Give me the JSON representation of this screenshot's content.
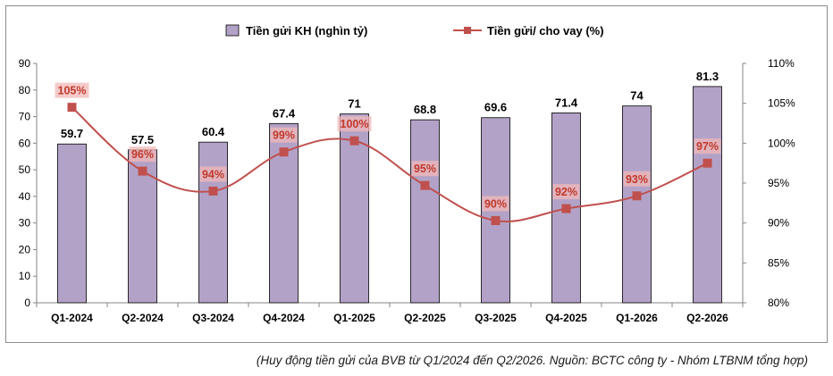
{
  "chart_data": {
    "type": "bar",
    "categories": [
      "Q1-2024",
      "Q2-2024",
      "Q3-2024",
      "Q4-2024",
      "Q1-2025",
      "Q2-2025",
      "Q3-2025",
      "Q4-2025",
      "Q1-2026",
      "Q2-2026"
    ],
    "series": [
      {
        "name": "Tiền gửi KH (nghìn tỷ)",
        "type": "bar",
        "axis": "left",
        "values": [
          59.7,
          57.5,
          60.4,
          67.4,
          71,
          68.8,
          69.6,
          71.4,
          74,
          81.3
        ],
        "labels": [
          "59.7",
          "57.5",
          "60.4",
          "67.4",
          "71",
          "68.8",
          "69.6",
          "71.4",
          "74",
          "81.3"
        ],
        "color": "#b3a2c7",
        "stroke": "#000000"
      },
      {
        "name": "Tiền gửi/ cho vay (%)",
        "type": "line",
        "axis": "right",
        "values": [
          104.5,
          96.5,
          94.0,
          98.9,
          100.3,
          94.7,
          90.3,
          91.8,
          93.4,
          97.5
        ],
        "labels": [
          "105%",
          "96%",
          "94%",
          "99%",
          "100%",
          "95%",
          "90%",
          "92%",
          "93%",
          "97%"
        ],
        "color": "#c0504d",
        "label_bg": "#f2b8b8"
      }
    ],
    "y_left": {
      "min": 0,
      "max": 90,
      "step": 10,
      "ticks": [
        "0",
        "10",
        "20",
        "30",
        "40",
        "50",
        "60",
        "70",
        "80",
        "90"
      ]
    },
    "y_right": {
      "min": 80,
      "max": 110,
      "step": 5,
      "ticks": [
        "80%",
        "85%",
        "90%",
        "95%",
        "100%",
        "105%",
        "110%"
      ]
    },
    "grid": false,
    "legend_position": "top-center",
    "title": "",
    "xlabel": "",
    "ylabel": ""
  },
  "caption": "(Huy động tiền gửi của BVB từ Q1/2024 đến Q2/2026. Nguồn: BCTC công ty - Nhóm LTBNM tổng hợp)"
}
